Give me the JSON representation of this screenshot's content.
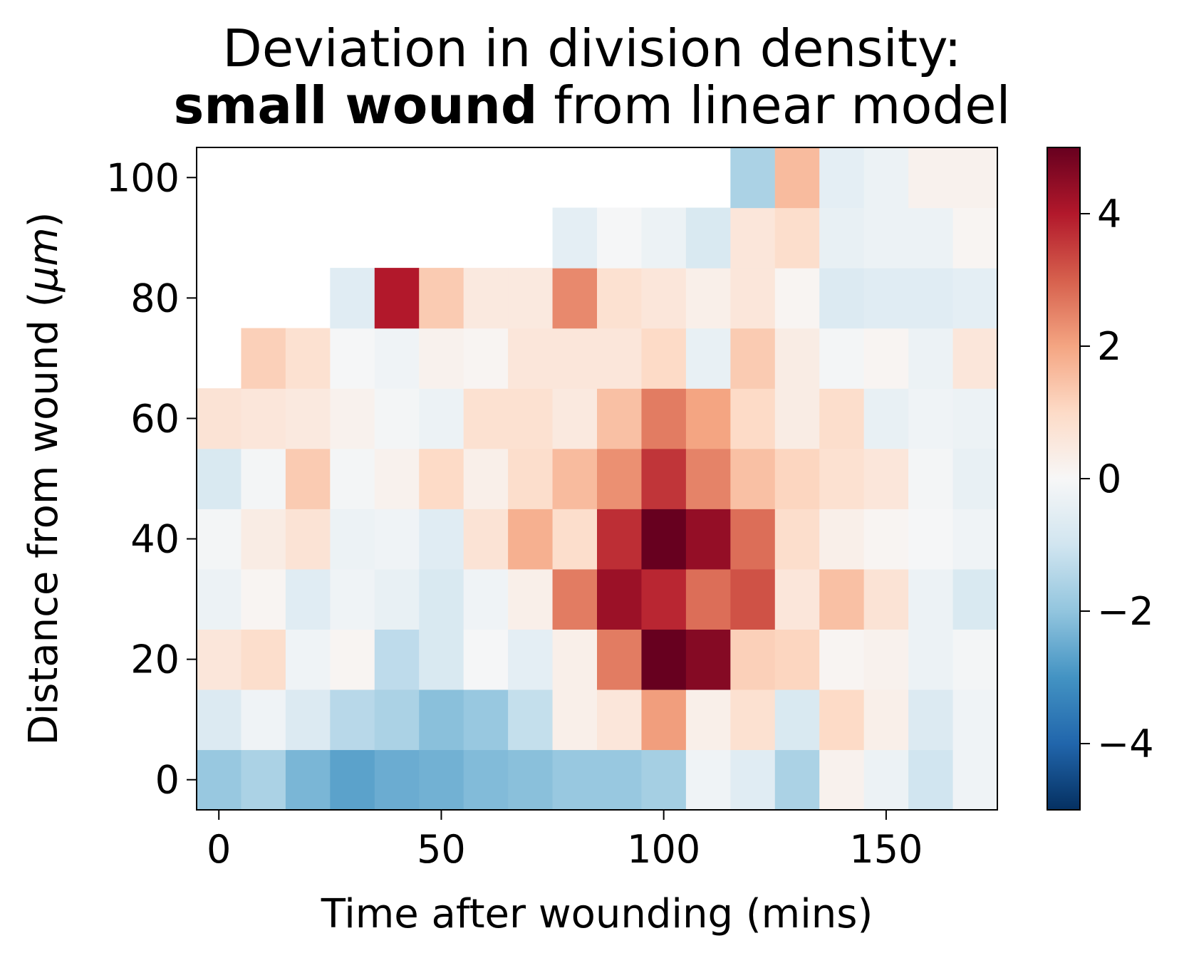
{
  "chart_data": {
    "type": "heatmap",
    "title_line1": "Deviation in division density:",
    "title_bold": "small wound",
    "title_rest": " from linear model",
    "xlabel": "Time after wounding (mins)",
    "ylabel": "Distance from wound ($\\mu m$)",
    "ylabel_text": "Distance from wound (",
    "ylabel_unit": "μm",
    "ylabel_close": ")",
    "colormap": "RdBu_r",
    "color_range": [
      -5,
      5
    ],
    "x_ticks": [
      "0",
      "50",
      "100",
      "150"
    ],
    "y_ticks": [
      "0",
      "20",
      "40",
      "60",
      "80",
      "100"
    ],
    "colorbar_ticks": [
      "−4",
      "−2",
      "0",
      "2",
      "4"
    ],
    "x_bins": [
      0,
      10,
      20,
      30,
      40,
      50,
      60,
      70,
      80,
      90,
      100,
      110,
      120,
      130,
      140,
      150,
      160,
      170
    ],
    "y_bins": [
      0,
      10,
      20,
      30,
      40,
      50,
      60,
      70,
      80,
      90,
      100
    ],
    "xlim": [
      -5,
      175
    ],
    "ylim": [
      -5,
      105
    ],
    "z": [
      [
        -1.9,
        -1.6,
        -2.3,
        -2.7,
        -2.5,
        -2.4,
        -2.2,
        -2.1,
        -1.9,
        -1.9,
        -1.7,
        -0.2,
        -0.6,
        -1.6,
        0.2,
        -0.3,
        -1.0,
        -0.2
      ],
      [
        -0.7,
        -0.2,
        -0.7,
        -1.4,
        -1.6,
        -2.1,
        -1.9,
        -1.2,
        0.3,
        0.6,
        2.1,
        0.3,
        0.8,
        -0.8,
        1.0,
        0.3,
        -0.7,
        -0.2
      ],
      [
        0.6,
        0.9,
        -0.2,
        0.1,
        -1.3,
        -0.8,
        -0.05,
        -0.5,
        0.3,
        2.6,
        5.2,
        4.6,
        1.2,
        1.1,
        0.1,
        0.2,
        -0.3,
        -0.1
      ],
      [
        -0.3,
        0.1,
        -0.6,
        -0.2,
        -0.4,
        -0.8,
        -0.2,
        0.3,
        2.6,
        4.3,
        3.8,
        2.8,
        3.2,
        0.6,
        1.5,
        0.7,
        -0.3,
        -0.8
      ],
      [
        -0.1,
        0.4,
        0.7,
        -0.3,
        -0.2,
        -0.6,
        0.7,
        1.8,
        0.9,
        3.7,
        5.2,
        4.4,
        2.8,
        0.9,
        0.3,
        0.1,
        -0.05,
        -0.2
      ],
      [
        -0.8,
        -0.1,
        1.3,
        -0.1,
        0.2,
        1.0,
        0.3,
        0.9,
        1.6,
        2.3,
        3.6,
        2.5,
        1.5,
        1.1,
        0.8,
        0.6,
        -0.1,
        -0.4
      ],
      [
        0.7,
        0.6,
        0.5,
        0.2,
        -0.1,
        -0.3,
        0.8,
        0.8,
        0.5,
        1.5,
        2.6,
        2.0,
        1.0,
        0.4,
        0.9,
        -0.4,
        -0.2,
        -0.3
      ],
      [
        null,
        1.2,
        0.8,
        -0.05,
        -0.2,
        0.2,
        0.1,
        0.6,
        0.6,
        0.6,
        1.0,
        -0.4,
        1.3,
        0.4,
        -0.1,
        0.1,
        -0.3,
        0.6
      ],
      [
        null,
        null,
        null,
        -0.6,
        4.0,
        1.3,
        0.5,
        0.5,
        2.4,
        0.8,
        0.6,
        0.3,
        0.6,
        0.1,
        -0.7,
        -0.6,
        -0.6,
        -0.5
      ],
      [
        null,
        null,
        null,
        null,
        null,
        null,
        null,
        null,
        -0.5,
        -0.05,
        -0.3,
        -0.8,
        0.6,
        0.9,
        -0.4,
        -0.3,
        -0.3,
        0.1
      ],
      [
        null,
        null,
        null,
        null,
        null,
        null,
        null,
        null,
        null,
        null,
        null,
        null,
        -1.6,
        1.6,
        -0.5,
        -0.3,
        0.2,
        0.2
      ]
    ]
  }
}
